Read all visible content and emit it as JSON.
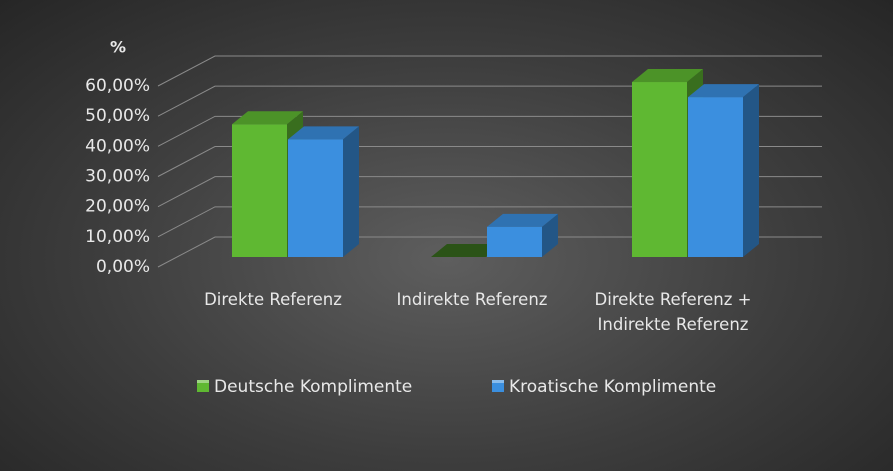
{
  "chart_data": {
    "type": "bar3d",
    "y_label": "%",
    "categories": [
      "Direkte Referenz",
      "Indirekte Referenz",
      "Direkte Referenz + Indirekte Referenz"
    ],
    "series": [
      {
        "name": "Deutsche Komplimente",
        "color": "#5fb832",
        "values": [
          44,
          0,
          58
        ]
      },
      {
        "name": "Kroatische Komplimente",
        "color": "#3b8fdf",
        "values": [
          39,
          10,
          53
        ]
      }
    ],
    "ylim": [
      0,
      60
    ],
    "yticks": [
      {
        "value": 0,
        "label": "0,00%"
      },
      {
        "value": 10,
        "label": "10,00%"
      },
      {
        "value": 20,
        "label": "20,00%"
      },
      {
        "value": 30,
        "label": "30,00%"
      },
      {
        "value": 40,
        "label": "40,00%"
      },
      {
        "value": 50,
        "label": "50,00%"
      },
      {
        "value": 60,
        "label": "60,00%"
      }
    ],
    "grid": true,
    "legend": "bottom"
  }
}
